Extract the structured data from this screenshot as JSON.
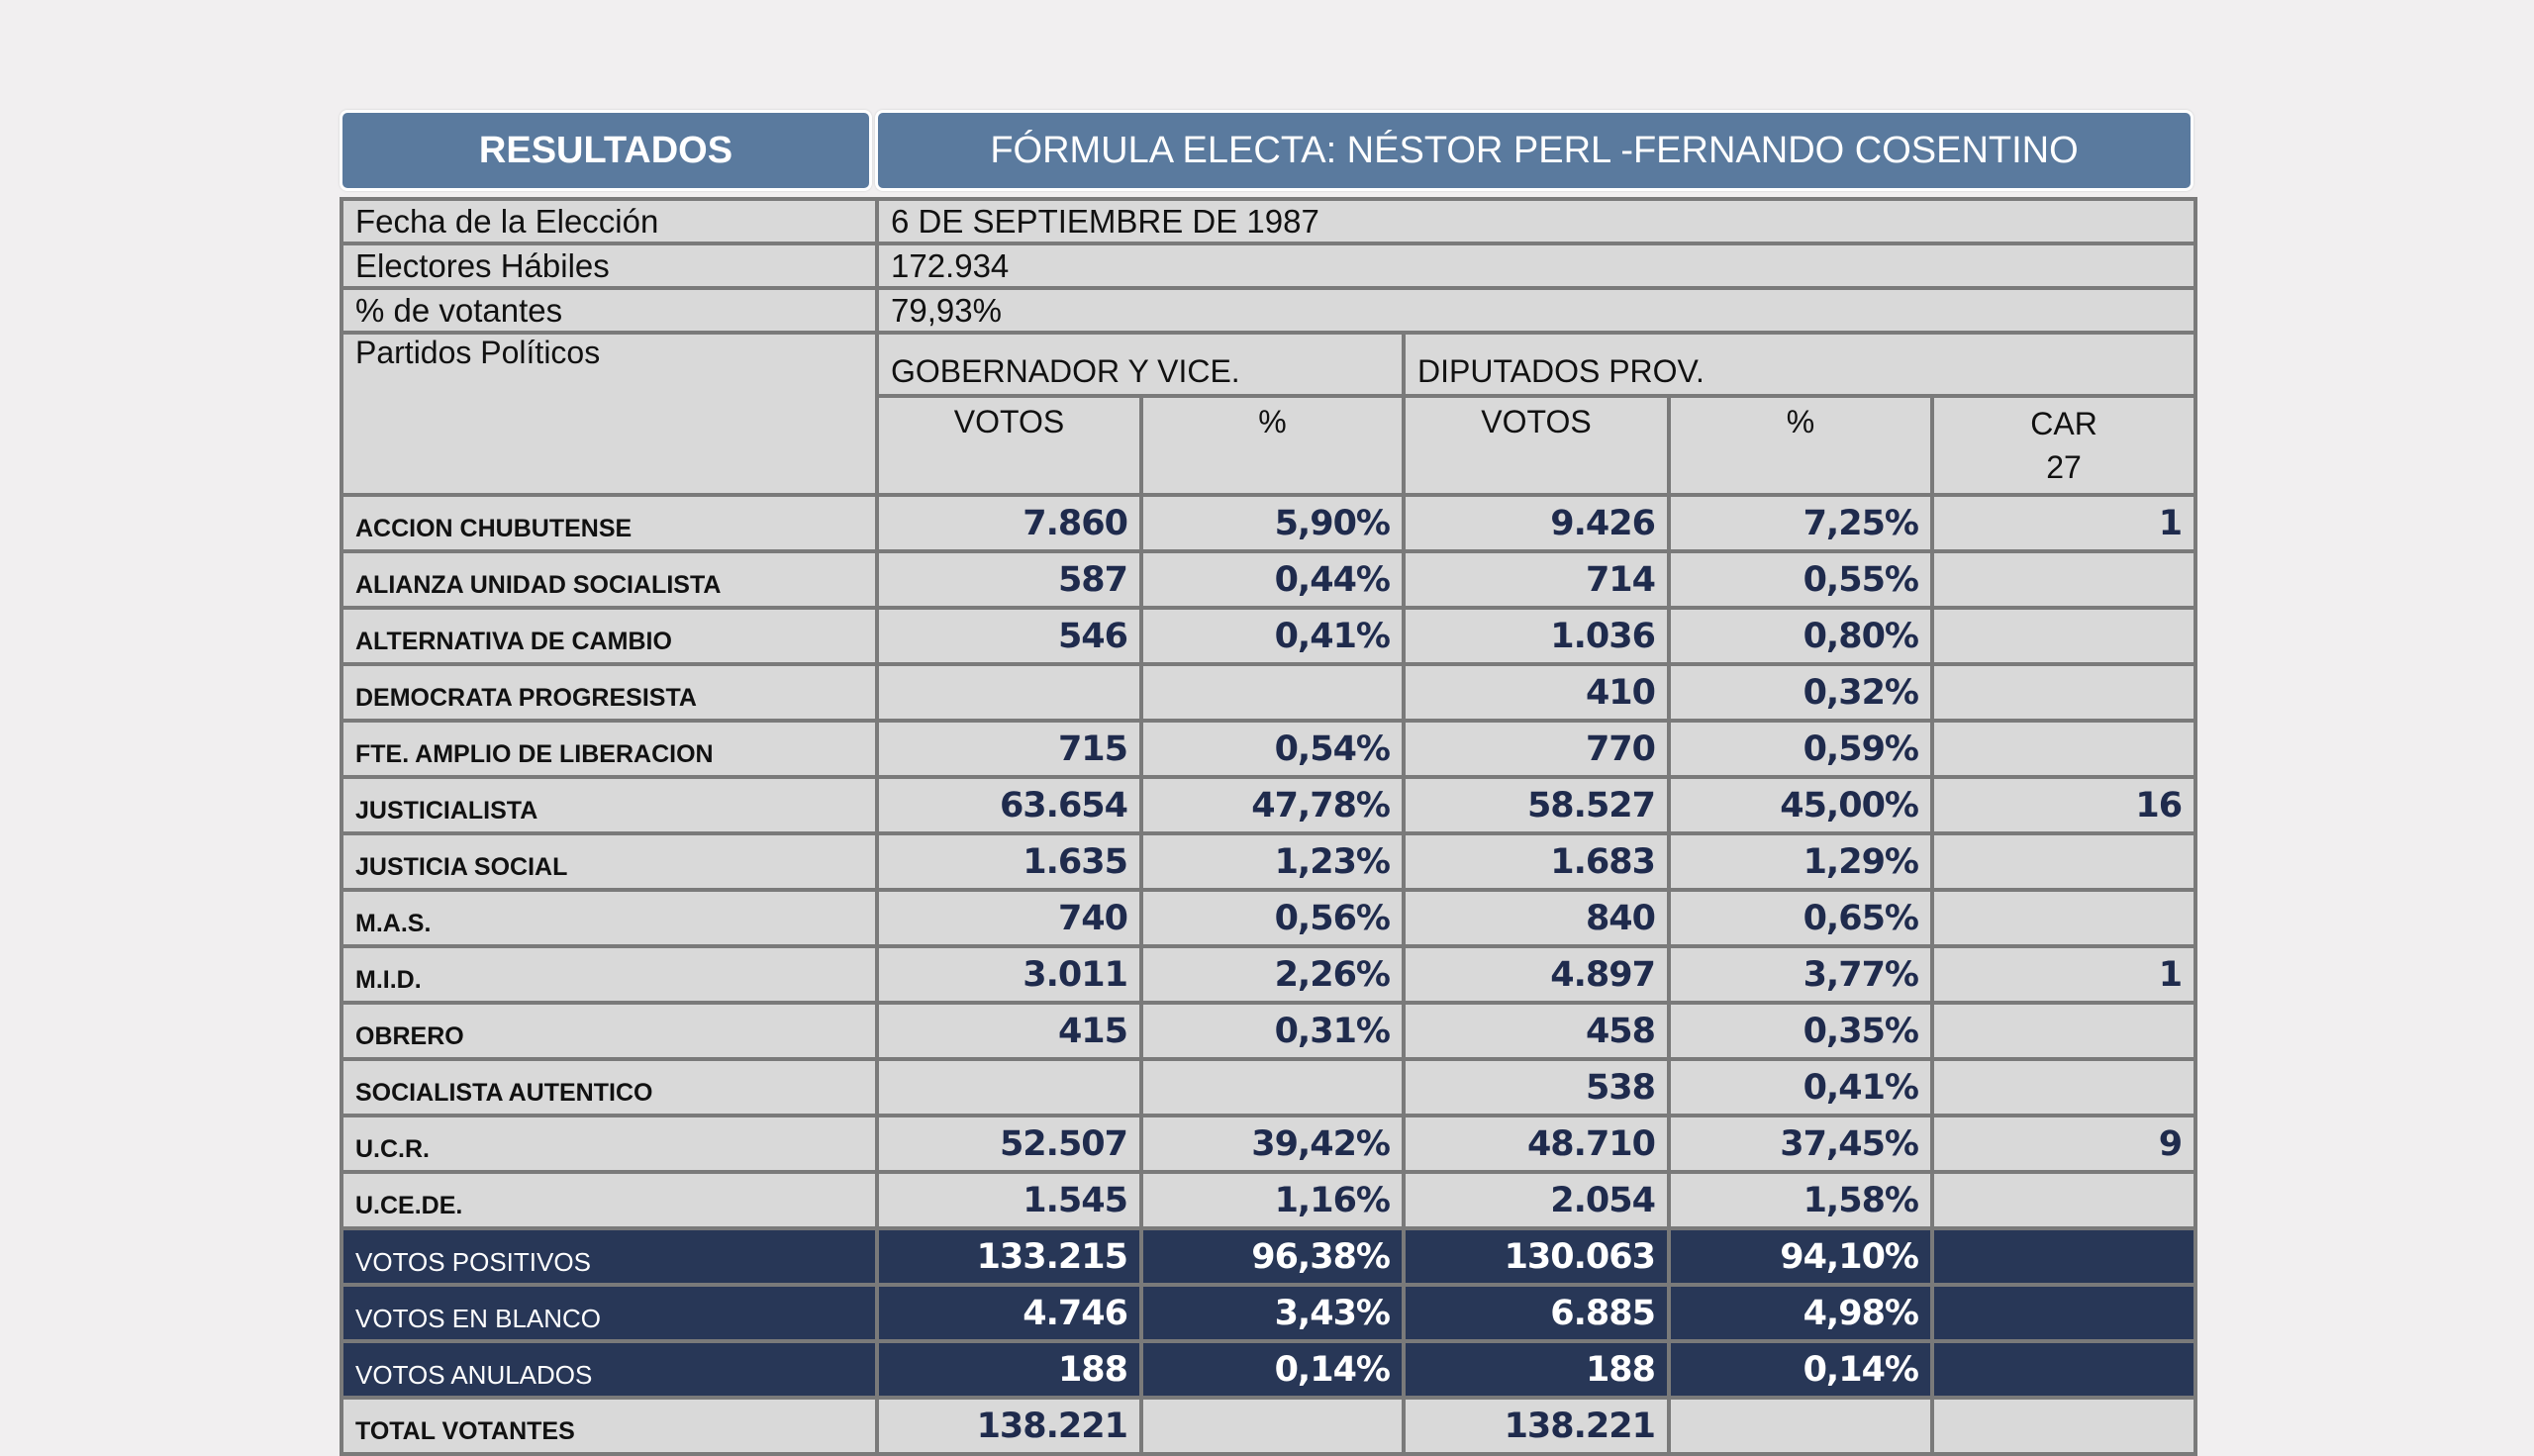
{
  "header": {
    "left": "RESULTADOS",
    "right": "FÓRMULA ELECTA: NÉSTOR PERL -FERNANDO COSENTINO"
  },
  "info": [
    {
      "label": "Fecha de la Elección",
      "value": "6 DE SEPTIEMBRE DE 1987"
    },
    {
      "label": "Electores Hábiles",
      "value": "172.934"
    },
    {
      "label": "% de votantes",
      "value": "79,93%"
    }
  ],
  "columns": {
    "parties": "Partidos Políticos",
    "gov": "GOBERNADOR Y VICE.",
    "dip": "DIPUTADOS PROV.",
    "votos": "VOTOS",
    "pct": "%",
    "car": "CAR",
    "car_total": "27"
  },
  "rows": [
    [
      "ACCION CHUBUTENSE",
      "7.860",
      "5,90%",
      "9.426",
      "7,25%",
      "1"
    ],
    [
      "ALIANZA UNIDAD SOCIALISTA",
      "587",
      "0,44%",
      "714",
      "0,55%",
      ""
    ],
    [
      "ALTERNATIVA DE CAMBIO",
      "546",
      "0,41%",
      "1.036",
      "0,80%",
      ""
    ],
    [
      "DEMOCRATA PROGRESISTA",
      "",
      "",
      "410",
      "0,32%",
      ""
    ],
    [
      "FTE. AMPLIO DE LIBERACION",
      "715",
      "0,54%",
      "770",
      "0,59%",
      ""
    ],
    [
      "JUSTICIALISTA",
      "63.654",
      "47,78%",
      "58.527",
      "45,00%",
      "16"
    ],
    [
      "JUSTICIA SOCIAL",
      "1.635",
      "1,23%",
      "1.683",
      "1,29%",
      ""
    ],
    [
      "M.A.S.",
      "740",
      "0,56%",
      "840",
      "0,65%",
      ""
    ],
    [
      "M.I.D.",
      "3.011",
      "2,26%",
      "4.897",
      "3,77%",
      "1"
    ],
    [
      "OBRERO",
      "415",
      "0,31%",
      "458",
      "0,35%",
      ""
    ],
    [
      "SOCIALISTA AUTENTICO",
      "",
      "",
      "538",
      "0,41%",
      ""
    ],
    [
      "U.C.R.",
      "52.507",
      "39,42%",
      "48.710",
      "37,45%",
      "9"
    ],
    [
      "U.CE.DE.",
      "1.545",
      "1,16%",
      "2.054",
      "1,58%",
      ""
    ]
  ],
  "totals": [
    [
      "VOTOS POSITIVOS",
      "133.215",
      "96,38%",
      "130.063",
      "94,10%",
      ""
    ],
    [
      "VOTOS EN BLANCO",
      "4.746",
      "3,43%",
      "6.885",
      "4,98%",
      ""
    ],
    [
      "VOTOS ANULADOS",
      "188",
      "0,14%",
      "188",
      "0,14%",
      ""
    ]
  ],
  "total_votantes": [
    "TOTAL VOTANTES",
    "138.221",
    "",
    "138.221",
    "",
    ""
  ],
  "colors": {
    "header": "#5a7a9e",
    "dark_rows": "#283757",
    "cell": "#d9d9d9",
    "numbers": "#1f2b4d"
  }
}
